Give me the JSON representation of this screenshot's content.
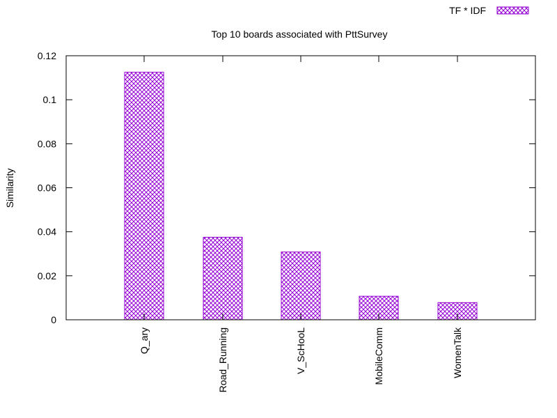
{
  "chart_data": {
    "type": "bar",
    "title": "Top 10 boards associated with PttSurvey",
    "xlabel": "",
    "ylabel": "Similarity",
    "categories": [
      "Q_ary",
      "Road_Running",
      "V_ScHooL",
      "MobileComm",
      "WomenTalk"
    ],
    "series": [
      {
        "name": "TF * IDF",
        "values": [
          0.1125,
          0.0375,
          0.0308,
          0.0107,
          0.0078
        ]
      }
    ],
    "ylim": [
      0,
      0.12
    ],
    "yticks": [
      "0",
      "0.02",
      "0.04",
      "0.06",
      "0.08",
      "0.1",
      "0.12"
    ],
    "ytick_values": [
      0,
      0.02,
      0.04,
      0.06,
      0.08,
      0.1,
      0.12
    ],
    "legend_position": "top-right",
    "grid": false,
    "colors": {
      "bar": "#9400d3",
      "axis": "#000000"
    },
    "fill_pattern": "crosshatch"
  }
}
